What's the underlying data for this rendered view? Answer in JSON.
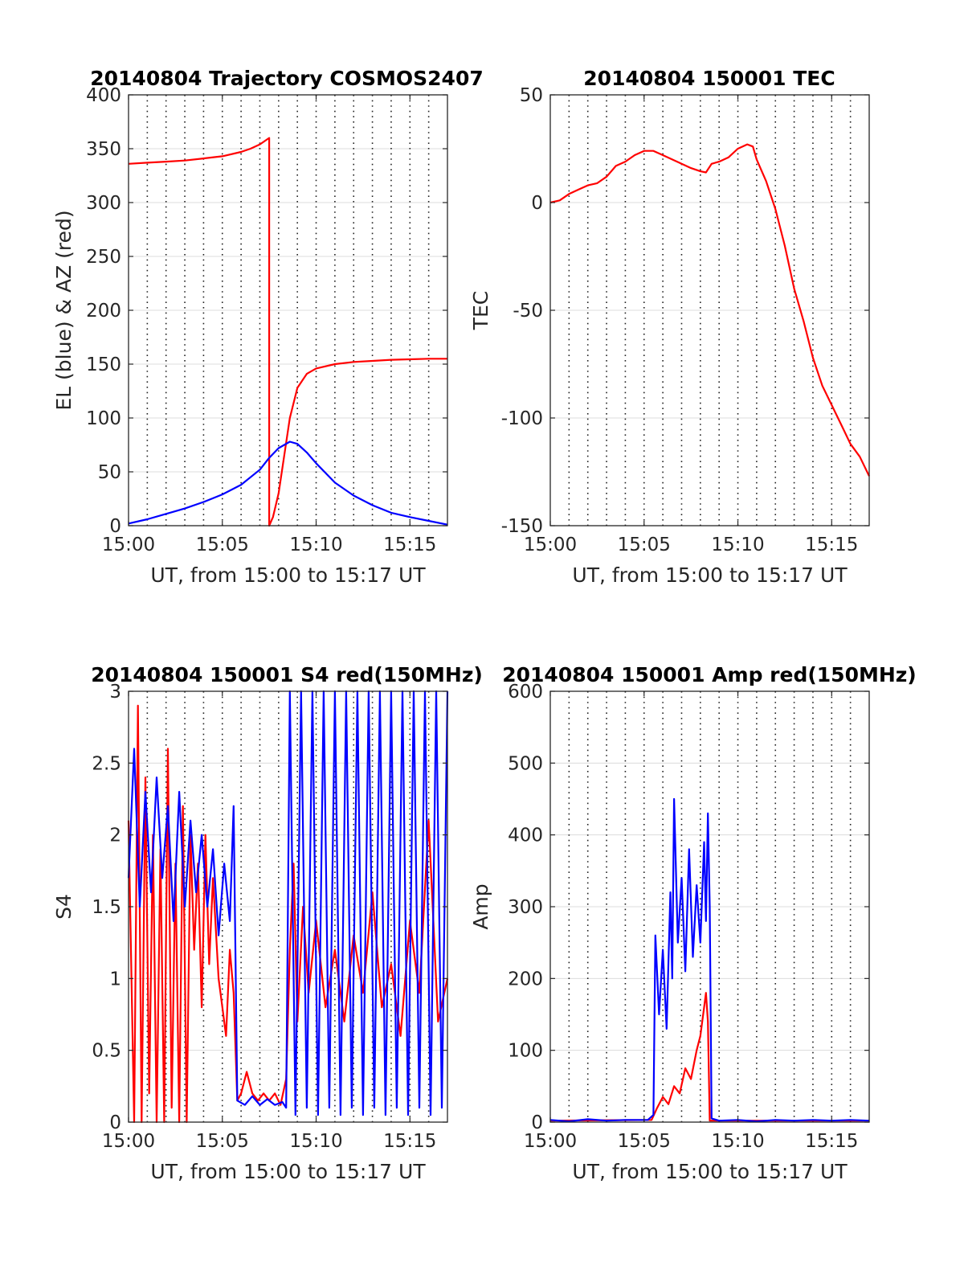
{
  "chart_data": [
    {
      "type": "line",
      "title": "20140804 Trajectory COSMOS2407",
      "xlabel": "UT, from 15:00 to 15:17 UT",
      "ylabel": "EL (blue) & AZ (red)",
      "xlim": [
        0,
        17
      ],
      "ylim": [
        0,
        400
      ],
      "x_ticks": [
        0,
        5,
        10,
        15
      ],
      "x_tick_labels": [
        "15:00",
        "15:05",
        "15:10",
        "15:15"
      ],
      "y_ticks": [
        0,
        50,
        100,
        150,
        200,
        250,
        300,
        350,
        400
      ],
      "y_tick_labels": [
        "0",
        "50",
        "100",
        "150",
        "200",
        "250",
        "300",
        "350",
        "400"
      ],
      "grid": "horizontal solid, vertical dotted every minute",
      "series": [
        {
          "color": "#ff0000",
          "points": [
            [
              0,
              336
            ],
            [
              1,
              337
            ],
            [
              2,
              338
            ],
            [
              3,
              339
            ],
            [
              4,
              341
            ],
            [
              5,
              343
            ],
            [
              6,
              347
            ],
            [
              6.5,
              350
            ],
            [
              7,
              354
            ],
            [
              7.5,
              360
            ],
            [
              7.5,
              0
            ],
            [
              7.7,
              8
            ],
            [
              8.0,
              30
            ],
            [
              8.3,
              65
            ],
            [
              8.6,
              100
            ],
            [
              9.0,
              128
            ],
            [
              9.5,
              141
            ],
            [
              10,
              146
            ],
            [
              11,
              150
            ],
            [
              12,
              152
            ],
            [
              13,
              153
            ],
            [
              14,
              154
            ],
            [
              15,
              154.5
            ],
            [
              16,
              155
            ],
            [
              17,
              155
            ]
          ]
        },
        {
          "color": "#0000ff",
          "points": [
            [
              0,
              2
            ],
            [
              1,
              6
            ],
            [
              2,
              11
            ],
            [
              3,
              16
            ],
            [
              4,
              22
            ],
            [
              5,
              29
            ],
            [
              6,
              38
            ],
            [
              7,
              52
            ],
            [
              7.5,
              63
            ],
            [
              8,
              72
            ],
            [
              8.6,
              78
            ],
            [
              9,
              76
            ],
            [
              9.5,
              68
            ],
            [
              10,
              58
            ],
            [
              11,
              40
            ],
            [
              12,
              28
            ],
            [
              13,
              19
            ],
            [
              14,
              12
            ],
            [
              15,
              8
            ],
            [
              16,
              4.5
            ],
            [
              17,
              1
            ]
          ]
        }
      ]
    },
    {
      "type": "line",
      "title": "20140804 150001 TEC",
      "xlabel": "UT, from 15:00 to 15:17 UT",
      "ylabel": "TEC",
      "xlim": [
        0,
        17
      ],
      "ylim": [
        -150,
        50
      ],
      "x_ticks": [
        0,
        5,
        10,
        15
      ],
      "x_tick_labels": [
        "15:00",
        "15:05",
        "15:10",
        "15:15"
      ],
      "y_ticks": [
        -150,
        -100,
        -50,
        0,
        50
      ],
      "y_tick_labels": [
        "-150",
        "-100",
        "-50",
        "0",
        "50"
      ],
      "grid": "horizontal solid, vertical dotted every minute",
      "series": [
        {
          "color": "#ff0000",
          "points": [
            [
              0,
              0
            ],
            [
              0.5,
              1
            ],
            [
              1,
              4
            ],
            [
              1.5,
              6
            ],
            [
              2,
              8
            ],
            [
              2.5,
              9
            ],
            [
              3,
              12
            ],
            [
              3.5,
              17
            ],
            [
              4,
              19
            ],
            [
              4.5,
              22
            ],
            [
              5,
              24
            ],
            [
              5.5,
              24
            ],
            [
              6,
              22
            ],
            [
              6.5,
              20
            ],
            [
              7,
              18
            ],
            [
              7.5,
              16
            ],
            [
              8,
              14.5
            ],
            [
              8.3,
              14
            ],
            [
              8.6,
              18
            ],
            [
              9,
              19
            ],
            [
              9.5,
              21
            ],
            [
              10,
              25
            ],
            [
              10.5,
              27
            ],
            [
              10.8,
              26
            ],
            [
              11,
              20
            ],
            [
              11.5,
              10
            ],
            [
              12,
              -3
            ],
            [
              12.5,
              -20
            ],
            [
              13,
              -40
            ],
            [
              13.5,
              -55
            ],
            [
              14,
              -72
            ],
            [
              14.5,
              -85
            ],
            [
              15,
              -94
            ],
            [
              15.5,
              -103
            ],
            [
              16,
              -112
            ],
            [
              16.5,
              -118
            ],
            [
              17,
              -127
            ]
          ]
        }
      ]
    },
    {
      "type": "line",
      "title": "20140804 150001 S4 red(150MHz)",
      "xlabel": "UT, from 15:00 to 15:17 UT",
      "ylabel": "S4",
      "xlim": [
        0,
        17
      ],
      "ylim": [
        0,
        3
      ],
      "x_ticks": [
        0,
        5,
        10,
        15
      ],
      "x_tick_labels": [
        "15:00",
        "15:05",
        "15:10",
        "15:15"
      ],
      "y_ticks": [
        0,
        0.5,
        1,
        1.5,
        2,
        2.5,
        3
      ],
      "y_tick_labels": [
        "0",
        "0.5",
        "1",
        "1.5",
        "2",
        "2.5",
        "3"
      ],
      "grid": "horizontal solid, vertical dotted every minute",
      "series": [
        {
          "color": "#ff0000",
          "points": [
            [
              0,
              2.1
            ],
            [
              0.3,
              0
            ],
            [
              0.5,
              2.9
            ],
            [
              0.7,
              0
            ],
            [
              0.9,
              2.4
            ],
            [
              1.1,
              0.2
            ],
            [
              1.3,
              2.0
            ],
            [
              1.5,
              0
            ],
            [
              1.7,
              1.9
            ],
            [
              1.9,
              0
            ],
            [
              2.1,
              2.6
            ],
            [
              2.3,
              0.1
            ],
            [
              2.5,
              1.8
            ],
            [
              2.7,
              0
            ],
            [
              2.9,
              2.2
            ],
            [
              3.1,
              0
            ],
            [
              3.3,
              2.0
            ],
            [
              3.5,
              1.2
            ],
            [
              3.7,
              1.8
            ],
            [
              3.9,
              0.8
            ],
            [
              4.1,
              2.0
            ],
            [
              4.3,
              1.1
            ],
            [
              4.5,
              1.7
            ],
            [
              4.8,
              1.0
            ],
            [
              5.0,
              0.8
            ],
            [
              5.2,
              0.6
            ],
            [
              5.4,
              1.2
            ],
            [
              5.6,
              0.9
            ],
            [
              5.8,
              0.15
            ],
            [
              6.0,
              0.2
            ],
            [
              6.3,
              0.35
            ],
            [
              6.6,
              0.2
            ],
            [
              6.9,
              0.15
            ],
            [
              7.2,
              0.2
            ],
            [
              7.5,
              0.15
            ],
            [
              7.8,
              0.2
            ],
            [
              8.1,
              0.12
            ],
            [
              8.4,
              0.3
            ],
            [
              8.6,
              1.2
            ],
            [
              8.8,
              1.8
            ],
            [
              9.0,
              0.7
            ],
            [
              9.3,
              1.5
            ],
            [
              9.6,
              0.9
            ],
            [
              10.0,
              1.4
            ],
            [
              10.5,
              0.8
            ],
            [
              11.0,
              1.2
            ],
            [
              11.5,
              0.7
            ],
            [
              12.0,
              1.3
            ],
            [
              12.5,
              0.9
            ],
            [
              13.0,
              1.6
            ],
            [
              13.5,
              0.8
            ],
            [
              14.0,
              1.1
            ],
            [
              14.5,
              0.6
            ],
            [
              15.0,
              1.4
            ],
            [
              15.5,
              0.9
            ],
            [
              16.0,
              2.1
            ],
            [
              16.5,
              0.7
            ],
            [
              17.0,
              1.0
            ]
          ]
        },
        {
          "color": "#0000ff",
          "points": [
            [
              0,
              1.7
            ],
            [
              0.3,
              2.6
            ],
            [
              0.6,
              1.5
            ],
            [
              0.9,
              2.3
            ],
            [
              1.2,
              1.6
            ],
            [
              1.5,
              2.4
            ],
            [
              1.8,
              1.7
            ],
            [
              2.1,
              2.2
            ],
            [
              2.4,
              1.4
            ],
            [
              2.7,
              2.3
            ],
            [
              3.0,
              1.5
            ],
            [
              3.3,
              2.1
            ],
            [
              3.6,
              1.6
            ],
            [
              3.9,
              2.0
            ],
            [
              4.2,
              1.5
            ],
            [
              4.5,
              1.9
            ],
            [
              4.8,
              1.3
            ],
            [
              5.1,
              1.8
            ],
            [
              5.4,
              1.4
            ],
            [
              5.6,
              2.2
            ],
            [
              5.8,
              0.15
            ],
            [
              6.2,
              0.12
            ],
            [
              6.6,
              0.18
            ],
            [
              7.0,
              0.12
            ],
            [
              7.4,
              0.16
            ],
            [
              7.8,
              0.12
            ],
            [
              8.2,
              0.14
            ],
            [
              8.4,
              0.1
            ],
            [
              8.6,
              3.0
            ],
            [
              8.9,
              0.05
            ],
            [
              9.2,
              3.0
            ],
            [
              9.5,
              0.1
            ],
            [
              9.8,
              3.0
            ],
            [
              10.1,
              0.05
            ],
            [
              10.4,
              3.0
            ],
            [
              10.7,
              0.1
            ],
            [
              11.0,
              3.0
            ],
            [
              11.3,
              0.05
            ],
            [
              11.6,
              3.0
            ],
            [
              11.9,
              0.1
            ],
            [
              12.2,
              3.0
            ],
            [
              12.5,
              0.05
            ],
            [
              12.8,
              3.0
            ],
            [
              13.1,
              0.1
            ],
            [
              13.4,
              3.0
            ],
            [
              13.7,
              0.05
            ],
            [
              14.0,
              3.0
            ],
            [
              14.3,
              0.1
            ],
            [
              14.6,
              3.0
            ],
            [
              14.9,
              0.05
            ],
            [
              15.2,
              3.0
            ],
            [
              15.5,
              0.1
            ],
            [
              15.8,
              3.0
            ],
            [
              16.1,
              0.05
            ],
            [
              16.4,
              3.0
            ],
            [
              16.7,
              0.1
            ],
            [
              17.0,
              3.0
            ]
          ]
        }
      ]
    },
    {
      "type": "line",
      "title": "20140804 150001 Amp red(150MHz)",
      "xlabel": "UT, from 15:00 to 15:17 UT",
      "ylabel": "Amp",
      "xlim": [
        0,
        17
      ],
      "ylim": [
        0,
        600
      ],
      "x_ticks": [
        0,
        5,
        10,
        15
      ],
      "x_tick_labels": [
        "15:00",
        "15:05",
        "15:10",
        "15:15"
      ],
      "y_ticks": [
        0,
        100,
        200,
        300,
        400,
        500,
        600
      ],
      "y_tick_labels": [
        "0",
        "100",
        "200",
        "300",
        "400",
        "500",
        "600"
      ],
      "grid": "horizontal solid, vertical dotted every minute",
      "series": [
        {
          "color": "#ff0000",
          "points": [
            [
              0,
              2
            ],
            [
              5.4,
              3
            ],
            [
              5.7,
              20
            ],
            [
              6.0,
              35
            ],
            [
              6.3,
              25
            ],
            [
              6.6,
              50
            ],
            [
              6.9,
              40
            ],
            [
              7.2,
              75
            ],
            [
              7.5,
              60
            ],
            [
              7.8,
              100
            ],
            [
              8.0,
              120
            ],
            [
              8.2,
              160
            ],
            [
              8.3,
              180
            ],
            [
              8.4,
              140
            ],
            [
              8.5,
              2
            ],
            [
              17.0,
              2
            ]
          ]
        },
        {
          "color": "#0000ff",
          "points": [
            [
              0,
              3
            ],
            [
              1,
              1
            ],
            [
              2,
              4
            ],
            [
              3,
              2
            ],
            [
              4,
              3
            ],
            [
              5.2,
              3
            ],
            [
              5.5,
              10
            ],
            [
              5.6,
              260
            ],
            [
              5.8,
              150
            ],
            [
              6.0,
              240
            ],
            [
              6.2,
              130
            ],
            [
              6.4,
              320
            ],
            [
              6.5,
              200
            ],
            [
              6.6,
              450
            ],
            [
              6.8,
              250
            ],
            [
              7.0,
              340
            ],
            [
              7.2,
              210
            ],
            [
              7.4,
              380
            ],
            [
              7.6,
              230
            ],
            [
              7.8,
              330
            ],
            [
              8.0,
              250
            ],
            [
              8.2,
              390
            ],
            [
              8.3,
              280
            ],
            [
              8.4,
              430
            ],
            [
              8.5,
              300
            ],
            [
              8.6,
              5
            ],
            [
              9,
              2
            ],
            [
              10,
              3
            ],
            [
              11,
              1
            ],
            [
              12,
              3
            ],
            [
              13,
              2
            ],
            [
              14,
              3
            ],
            [
              15,
              2
            ],
            [
              16,
              3
            ],
            [
              17,
              2
            ]
          ]
        }
      ]
    }
  ]
}
